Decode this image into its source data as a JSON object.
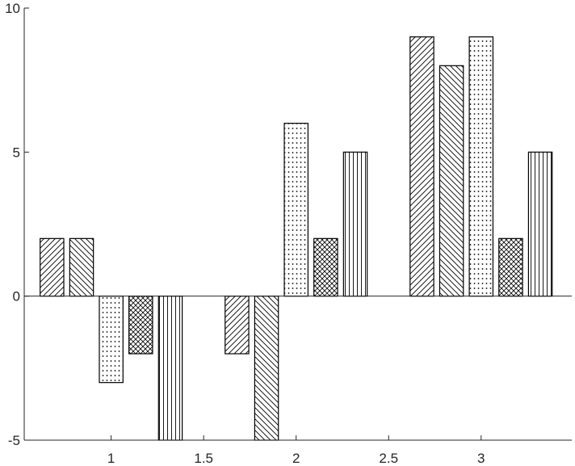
{
  "chart_data": {
    "type": "bar",
    "categories": [
      1,
      2,
      3
    ],
    "series": [
      {
        "pattern": "diagonal-up",
        "values": [
          2,
          -2,
          9
        ]
      },
      {
        "pattern": "diagonal-down",
        "values": [
          2,
          -5,
          8
        ]
      },
      {
        "pattern": "dots",
        "values": [
          -3,
          6,
          9
        ]
      },
      {
        "pattern": "crosshatch",
        "values": [
          -2,
          2,
          2
        ]
      },
      {
        "pattern": "vertical",
        "values": [
          -5,
          5,
          5
        ]
      }
    ],
    "xlim": [
      0.53,
      3.49
    ],
    "ylim": [
      -5,
      10
    ],
    "xticks": [
      {
        "value": 1,
        "label": "1"
      },
      {
        "value": 1.5,
        "label": "1.5"
      },
      {
        "value": 2,
        "label": "2"
      },
      {
        "value": 2.5,
        "label": "2.5"
      },
      {
        "value": 3,
        "label": "3"
      }
    ],
    "yticks": [
      {
        "value": -5,
        "label": "-5"
      },
      {
        "value": 0,
        "label": "0"
      },
      {
        "value": 5,
        "label": "5"
      },
      {
        "value": 10,
        "label": "10"
      }
    ],
    "bar_fill": "#ffffff",
    "bar_edge": "#000000",
    "axis_color": "#262626",
    "title": "",
    "xlabel": "",
    "ylabel": "",
    "grid": false,
    "legend": false
  }
}
